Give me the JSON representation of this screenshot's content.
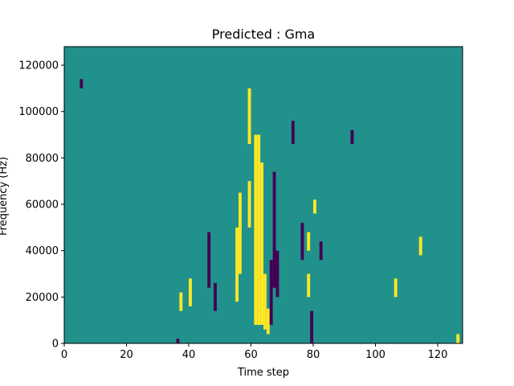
{
  "chart_data": {
    "type": "heatmap",
    "title": "Predicted : Gma",
    "xlabel": "Time step",
    "ylabel": "Frequency (Hz)",
    "xlim": [
      0,
      128
    ],
    "ylim": [
      0,
      128000
    ],
    "x_ticks": [
      0,
      20,
      40,
      60,
      80,
      100,
      120
    ],
    "x_tick_labels": [
      "0",
      "20",
      "40",
      "60",
      "80",
      "100",
      "120"
    ],
    "y_ticks": [
      0,
      20000,
      40000,
      60000,
      80000,
      100000,
      120000
    ],
    "y_tick_labels": [
      "0",
      "20000",
      "40000",
      "60000",
      "80000",
      "100000",
      "120000"
    ],
    "grid": false,
    "colormap": "viridis",
    "colors": {
      "background": "#21918c",
      "high": "#fde725",
      "low": "#440154"
    },
    "yellow_streaks": [
      {
        "t": 61.5,
        "f_start": 8000,
        "f_end": 90000
      },
      {
        "t": 62.5,
        "f_start": 8000,
        "f_end": 90000
      },
      {
        "t": 63.5,
        "f_start": 8000,
        "f_end": 78000
      },
      {
        "t": 55.5,
        "f_start": 18000,
        "f_end": 50000
      },
      {
        "t": 56.5,
        "f_start": 30000,
        "f_end": 65000
      },
      {
        "t": 64.5,
        "f_start": 6000,
        "f_end": 30000
      },
      {
        "t": 65.5,
        "f_start": 4000,
        "f_end": 15000
      },
      {
        "t": 59.5,
        "f_start": 86000,
        "f_end": 110000
      },
      {
        "t": 59.5,
        "f_start": 50000,
        "f_end": 70000
      },
      {
        "t": 78.5,
        "f_start": 20000,
        "f_end": 30000
      },
      {
        "t": 78.5,
        "f_start": 40000,
        "f_end": 48000
      },
      {
        "t": 80.5,
        "f_start": 56000,
        "f_end": 62000
      },
      {
        "t": 106.5,
        "f_start": 20000,
        "f_end": 28000
      },
      {
        "t": 114.5,
        "f_start": 38000,
        "f_end": 46000
      },
      {
        "t": 40.5,
        "f_start": 16000,
        "f_end": 28000
      },
      {
        "t": 37.5,
        "f_start": 14000,
        "f_end": 22000
      },
      {
        "t": 126.5,
        "f_start": 0,
        "f_end": 4000
      }
    ],
    "dark_streaks": [
      {
        "t": 67.5,
        "f_start": 24000,
        "f_end": 74000
      },
      {
        "t": 68.5,
        "f_start": 20000,
        "f_end": 40000
      },
      {
        "t": 66.5,
        "f_start": 8000,
        "f_end": 36000
      },
      {
        "t": 76.5,
        "f_start": 36000,
        "f_end": 52000
      },
      {
        "t": 79.5,
        "f_start": 0,
        "f_end": 14000
      },
      {
        "t": 82.5,
        "f_start": 36000,
        "f_end": 44000
      },
      {
        "t": 46.5,
        "f_start": 24000,
        "f_end": 48000
      },
      {
        "t": 48.5,
        "f_start": 14000,
        "f_end": 26000
      },
      {
        "t": 73.5,
        "f_start": 86000,
        "f_end": 96000
      },
      {
        "t": 92.5,
        "f_start": 86000,
        "f_end": 92000
      },
      {
        "t": 5.5,
        "f_start": 110000,
        "f_end": 114000
      },
      {
        "t": 36.5,
        "f_start": 0,
        "f_end": 2000
      }
    ]
  }
}
